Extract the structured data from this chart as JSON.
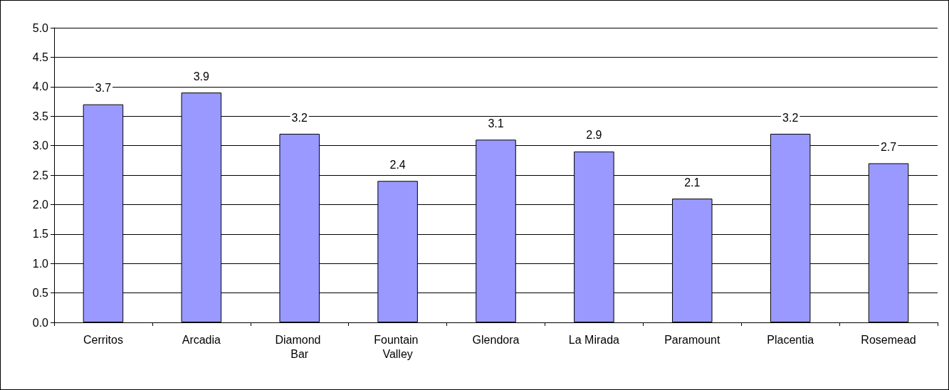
{
  "chart_data": {
    "type": "bar",
    "categories": [
      "Cerritos",
      "Arcadia",
      "Diamond Bar",
      "Fountain Valley",
      "Glendora",
      "La Mirada",
      "Paramount",
      "Placentia",
      "Rosemead"
    ],
    "values": [
      3.7,
      3.9,
      3.2,
      2.4,
      3.1,
      2.9,
      2.1,
      3.2,
      2.7
    ],
    "color": "#9999ff",
    "ylim": [
      0,
      5
    ],
    "yticks": [
      {
        "value": 0,
        "label": "0.0"
      },
      {
        "value": 0.5,
        "label": "0.5"
      },
      {
        "value": 1,
        "label": "1.0"
      },
      {
        "value": 1.5,
        "label": "1.5"
      },
      {
        "value": 2,
        "label": "2.0"
      },
      {
        "value": 2.5,
        "label": "2.5"
      },
      {
        "value": 3,
        "label": "3.0"
      },
      {
        "value": 3.5,
        "label": "3.5"
      },
      {
        "value": 4,
        "label": "4.0"
      },
      {
        "value": 4.5,
        "label": "4.5"
      },
      {
        "value": 5,
        "label": "5.0"
      }
    ],
    "grid": "y",
    "data_labels": true
  }
}
